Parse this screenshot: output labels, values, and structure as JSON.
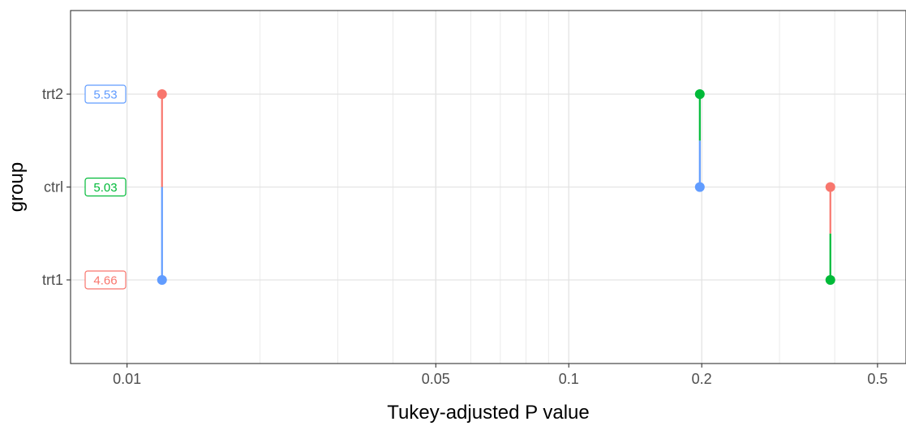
{
  "chart_data": {
    "type": "scatter",
    "title": "",
    "xlabel": "Tukey-adjusted P value",
    "ylabel": "group",
    "x_scale": "log",
    "xlim": [
      0.00745,
      0.58
    ],
    "x_ticks": [
      {
        "value": 0.01,
        "label": "0.01"
      },
      {
        "value": 0.05,
        "label": "0.05"
      },
      {
        "value": 0.1,
        "label": "0.1"
      },
      {
        "value": 0.2,
        "label": "0.2"
      },
      {
        "value": 0.5,
        "label": "0.5"
      }
    ],
    "x_minor_gridlines": [
      0.02,
      0.03,
      0.04,
      0.06,
      0.07,
      0.08,
      0.09,
      0.3,
      0.4
    ],
    "categories": [
      "trt1",
      "ctrl",
      "trt2"
    ],
    "group_means": [
      {
        "group": "trt2",
        "label": "5.53",
        "color": "#619CFF"
      },
      {
        "group": "ctrl",
        "label": "5.03",
        "color": "#00BA38"
      },
      {
        "group": "trt1",
        "label": "4.66",
        "color": "#F8766D"
      }
    ],
    "comparisons": [
      {
        "group1": "trt1",
        "group2": "trt2",
        "p": 0.012,
        "color1": "#619CFF",
        "color2": "#F8766D"
      },
      {
        "group1": "ctrl",
        "group2": "trt2",
        "p": 0.198,
        "color1": "#619CFF",
        "color2": "#00BA38"
      },
      {
        "group1": "trt1",
        "group2": "ctrl",
        "p": 0.391,
        "color1": "#00BA38",
        "color2": "#F8766D"
      }
    ],
    "grid": true,
    "legend": "none",
    "colors": {
      "trt1": "#F8766D",
      "ctrl": "#00BA38",
      "trt2": "#619CFF"
    }
  }
}
